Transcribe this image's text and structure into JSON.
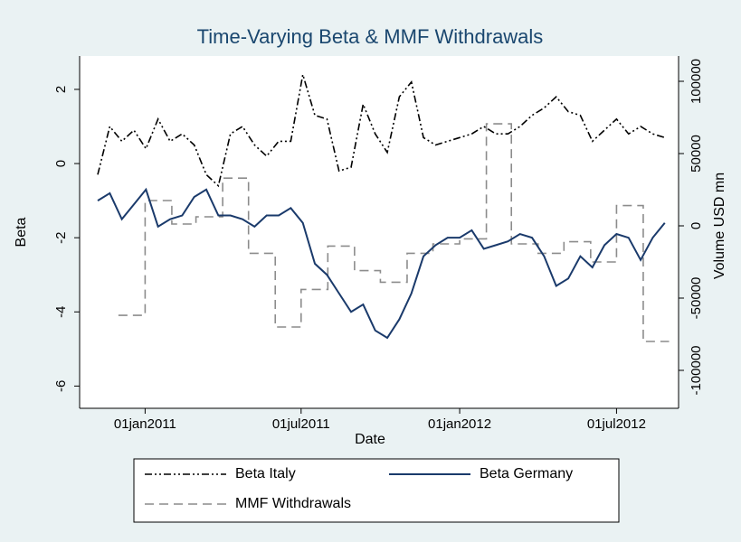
{
  "chart_data": {
    "type": "line",
    "title": "Time-Varying Beta & MMF Withdrawals",
    "x_label": "Date",
    "y_label": "Beta",
    "y2_label": "Volume USD mn",
    "xlim": [
      "2010-10-17",
      "2012-09-11"
    ],
    "xticks": [
      {
        "value": "2011-01-01",
        "label": "01jan2011"
      },
      {
        "value": "2011-07-01",
        "label": "01jul2011"
      },
      {
        "value": "2012-01-01",
        "label": "01jan2012"
      },
      {
        "value": "2012-07-01",
        "label": "01jul2012"
      }
    ],
    "ylim": [
      -6.6,
      2.9
    ],
    "yticks": [
      2,
      0,
      -2,
      -4,
      -6
    ],
    "y2lim": [
      -126250,
      117500
    ],
    "y2ticks": [
      100000,
      50000,
      0,
      -50000,
      -100000
    ],
    "grid": false,
    "legend": "bottom",
    "series": [
      {
        "name": "Beta Italy",
        "color": "#000000",
        "line_style": "dash-dot",
        "x": [
          "2010-11-07",
          "2010-11-21",
          "2010-12-05",
          "2010-12-19",
          "2011-01-02",
          "2011-01-16",
          "2011-01-30",
          "2011-02-13",
          "2011-02-27",
          "2011-03-13",
          "2011-03-27",
          "2011-04-10",
          "2011-04-24",
          "2011-05-08",
          "2011-05-22",
          "2011-06-05",
          "2011-06-19",
          "2011-07-03",
          "2011-07-17",
          "2011-07-31",
          "2011-08-14",
          "2011-08-28",
          "2011-09-11",
          "2011-09-25",
          "2011-10-09",
          "2011-10-23",
          "2011-11-06",
          "2011-11-20",
          "2011-12-04",
          "2011-12-18",
          "2012-01-01",
          "2012-01-15",
          "2012-01-29",
          "2012-02-12",
          "2012-02-26",
          "2012-03-11",
          "2012-03-25",
          "2012-04-08",
          "2012-04-22",
          "2012-05-06",
          "2012-05-20",
          "2012-06-03",
          "2012-06-17",
          "2012-07-01",
          "2012-07-15",
          "2012-07-29",
          "2012-08-12",
          "2012-08-26"
        ],
        "values": [
          -0.3,
          1.0,
          0.6,
          0.9,
          0.4,
          1.2,
          0.6,
          0.8,
          0.5,
          -0.3,
          -0.6,
          0.8,
          1.0,
          0.5,
          0.2,
          0.6,
          0.6,
          2.4,
          1.3,
          1.2,
          -0.2,
          -0.1,
          1.6,
          0.8,
          0.3,
          1.8,
          2.2,
          0.7,
          0.5,
          0.6,
          0.7,
          0.8,
          1.0,
          0.8,
          0.8,
          1.0,
          1.3,
          1.5,
          1.8,
          1.4,
          1.3,
          0.6,
          0.9,
          1.2,
          0.8,
          1.0,
          0.8,
          0.7
        ]
      },
      {
        "name": "Beta Germany",
        "color": "#1a3a6b",
        "line_style": "solid",
        "x": [
          "2010-11-07",
          "2010-11-21",
          "2010-12-05",
          "2010-12-19",
          "2011-01-02",
          "2011-01-16",
          "2011-01-30",
          "2011-02-13",
          "2011-02-27",
          "2011-03-13",
          "2011-03-27",
          "2011-04-10",
          "2011-04-24",
          "2011-05-08",
          "2011-05-22",
          "2011-06-05",
          "2011-06-19",
          "2011-07-03",
          "2011-07-17",
          "2011-07-31",
          "2011-08-14",
          "2011-08-28",
          "2011-09-11",
          "2011-09-25",
          "2011-10-09",
          "2011-10-23",
          "2011-11-06",
          "2011-11-20",
          "2011-12-04",
          "2011-12-18",
          "2012-01-01",
          "2012-01-15",
          "2012-01-29",
          "2012-02-12",
          "2012-02-26",
          "2012-03-11",
          "2012-03-25",
          "2012-04-08",
          "2012-04-22",
          "2012-05-06",
          "2012-05-20",
          "2012-06-03",
          "2012-06-17",
          "2012-07-01",
          "2012-07-15",
          "2012-07-29",
          "2012-08-12",
          "2012-08-26"
        ],
        "values": [
          -1.0,
          -0.8,
          -1.5,
          -1.1,
          -0.7,
          -1.7,
          -1.5,
          -1.4,
          -0.9,
          -0.7,
          -1.4,
          -1.4,
          -1.5,
          -1.7,
          -1.4,
          -1.4,
          -1.2,
          -1.6,
          -2.7,
          -3.0,
          -3.5,
          -4.0,
          -3.8,
          -4.5,
          -4.7,
          -4.2,
          -3.5,
          -2.5,
          -2.2,
          -2.0,
          -2.0,
          -1.8,
          -2.3,
          -2.2,
          -2.1,
          -1.9,
          -2.0,
          -2.5,
          -3.3,
          -3.1,
          -2.5,
          -2.8,
          -2.2,
          -1.9,
          -2.0,
          -2.6,
          -2.0,
          -1.6
        ]
      },
      {
        "name": "MMF Withdrawals",
        "color": "#8c8c8c",
        "line_style": "dash",
        "axis": "y2",
        "step": true,
        "x": [
          "2010-12-01",
          "2011-01-01",
          "2011-02-01",
          "2011-03-01",
          "2011-04-01",
          "2011-05-01",
          "2011-06-01",
          "2011-07-01",
          "2011-08-01",
          "2011-09-01",
          "2011-10-01",
          "2011-11-01",
          "2011-12-01",
          "2012-01-01",
          "2012-02-01",
          "2012-03-01",
          "2012-04-01",
          "2012-05-01",
          "2012-06-01",
          "2012-07-01",
          "2012-08-01",
          "2012-08-31"
        ],
        "values": [
          -61900,
          17500,
          1250,
          6250,
          33000,
          -19000,
          -70000,
          -44000,
          -14000,
          -31000,
          -39000,
          -19000,
          -12500,
          -9000,
          70600,
          -12500,
          -19000,
          -11000,
          -25000,
          14000,
          -80000,
          -80000
        ]
      }
    ]
  }
}
